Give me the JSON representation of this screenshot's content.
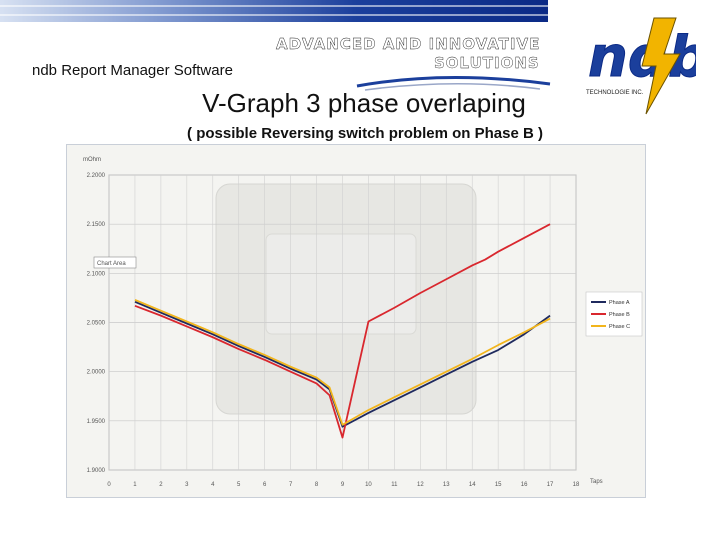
{
  "app_name": "ndb Report Manager Software",
  "brand": {
    "line1": "ADVANCED AND INNOVATIVE",
    "line2": "SOLUTIONS",
    "logo_text": "ndb",
    "logo_caption": "TECHNOLOGIE INC.",
    "colors": {
      "band": "#0b2a86",
      "logo_blue": "#1b3f9c",
      "logo_yellow": "#f2b400"
    }
  },
  "slide": {
    "title": "V-Graph 3 phase overlaping",
    "subtitle": "( possible Reversing switch problem on Phase B )"
  },
  "chart_data": {
    "type": "line",
    "ylabel": "mOhm",
    "xlabel": "Taps",
    "annotation": "Chart Area",
    "ylim": [
      1.9,
      2.2
    ],
    "xlim": [
      0,
      18
    ],
    "grid": true,
    "legend_placement": "right",
    "yticks": [
      "1.9000",
      "1.9500",
      "2.0000",
      "2.0500",
      "2.1000",
      "2.1500",
      "2.2000"
    ],
    "ytick_values": [
      1.9,
      1.95,
      2.0,
      2.05,
      2.1,
      2.15,
      2.2
    ],
    "xticks": [
      "0",
      "1",
      "2",
      "3",
      "4",
      "5",
      "6",
      "7",
      "8",
      "9",
      "10",
      "11",
      "12",
      "13",
      "14",
      "15",
      "16",
      "17",
      "18"
    ],
    "x": [
      1,
      2,
      3,
      4,
      5,
      6,
      7,
      8,
      8.5,
      9,
      10,
      11,
      12,
      13,
      14,
      14.5,
      15,
      16,
      17
    ],
    "series": [
      {
        "name": "Phase A",
        "color": "#1f2a5e",
        "values": [
          2.071,
          2.06,
          2.049,
          2.038,
          2.026,
          2.015,
          2.003,
          1.992,
          1.982,
          1.944,
          1.958,
          1.971,
          1.984,
          1.997,
          2.01,
          2.016,
          2.022,
          2.038,
          2.057
        ]
      },
      {
        "name": "Phase B",
        "color": "#d9272e",
        "values": [
          2.067,
          2.057,
          2.046,
          2.035,
          2.023,
          2.012,
          2.0,
          1.988,
          1.976,
          1.933,
          2.051,
          2.065,
          2.08,
          2.094,
          2.108,
          2.114,
          2.122,
          2.136,
          2.15
        ]
      },
      {
        "name": "Phase C",
        "color": "#f2b51c",
        "values": [
          2.073,
          2.062,
          2.051,
          2.04,
          2.028,
          2.017,
          2.005,
          1.994,
          1.984,
          1.946,
          1.961,
          1.974,
          1.987,
          2.0,
          2.013,
          2.02,
          2.027,
          2.04,
          2.054
        ]
      }
    ]
  }
}
